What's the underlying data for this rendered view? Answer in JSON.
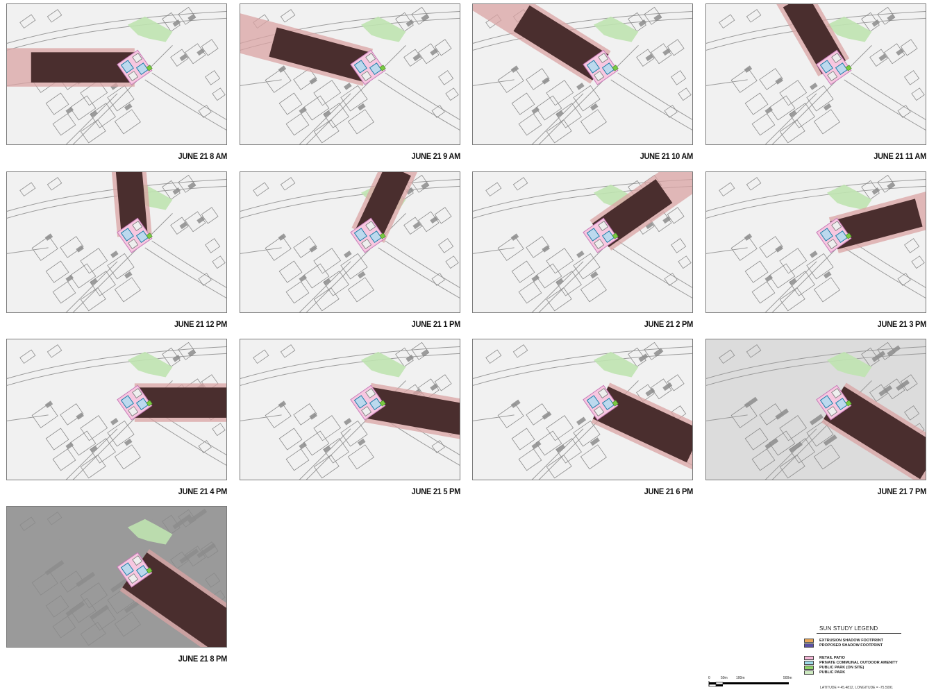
{
  "panels": [
    {
      "label": "JUNE 21 8 AM",
      "hour": 8
    },
    {
      "label": "JUNE 21 9 AM",
      "hour": 9
    },
    {
      "label": "JUNE 21 10 AM",
      "hour": 10
    },
    {
      "label": "JUNE 21  11 AM",
      "hour": 11
    },
    {
      "label": "JUNE 21 12 PM",
      "hour": 12
    },
    {
      "label": "JUNE 21 1 PM",
      "hour": 13
    },
    {
      "label": "JUNE 21 2 PM",
      "hour": 14
    },
    {
      "label": "JUNE 21 3 PM",
      "hour": 15
    },
    {
      "label": "JUNE 21 4 PM",
      "hour": 16
    },
    {
      "label": "JUNE 21 5 PM",
      "hour": 17
    },
    {
      "label": "JUNE 21 6 PM",
      "hour": 18
    },
    {
      "label": "JUNE 21 7 PM",
      "hour": 19
    },
    {
      "label": "JUNE 21 8 PM",
      "hour": 20
    }
  ],
  "legend": {
    "title": "SUN STUDY LEGEND",
    "shadow_items": [
      {
        "label": "EXTRUSION SHADOW FOOTPRINT",
        "color": "#e7a65a"
      },
      {
        "label": "PROPOSED SHADOW FOOTPRINT",
        "color": "#5a4fa3"
      }
    ],
    "area_items": [
      {
        "label": "RETAIL PATIO",
        "color": "#f5b8d8"
      },
      {
        "label": "PRIVATE COMMUNAL OUTDOOR AMENITY",
        "color": "#9fdbe8"
      },
      {
        "label": "PUBLIC PARK (ON SITE)",
        "color": "#8fd36a"
      },
      {
        "label": "PUBLIC PARK",
        "color": "#cdeac0"
      }
    ],
    "scale_labels": [
      "0",
      "50m",
      "100m",
      "500m"
    ],
    "coordinates": "LATITUDE = 45.4812, LONGITUDE = -75.5091"
  },
  "colors": {
    "map_background": "#f1f1f1",
    "road_line": "#9a9a9a",
    "building_shadow": "#8c8c8c",
    "proposed_shadow": "#4a2e2e",
    "extrusion_shadow": "#d9a3a3",
    "park": "#bfe3b0"
  }
}
